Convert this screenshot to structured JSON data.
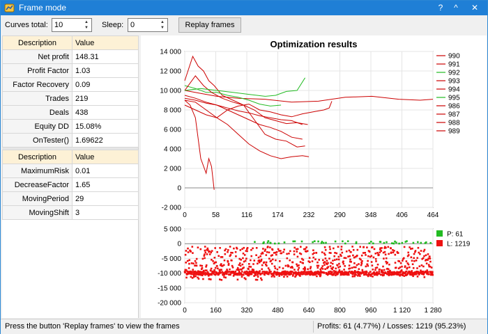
{
  "window": {
    "title": "Frame mode"
  },
  "titlebar_buttons": {
    "help": "?",
    "minimize": "^",
    "close": "✕"
  },
  "toolbar": {
    "curves_label": "Curves total:",
    "curves_value": "10",
    "sleep_label": "Sleep:",
    "sleep_value": "0",
    "replay_label": "Replay frames"
  },
  "results_table": {
    "headers": [
      "Description",
      "Value"
    ],
    "rows": [
      {
        "desc": "Net profit",
        "value": "148.31"
      },
      {
        "desc": "Profit Factor",
        "value": "1.03"
      },
      {
        "desc": "Factor Recovery",
        "value": "0.09"
      },
      {
        "desc": "Trades",
        "value": "219"
      },
      {
        "desc": "Deals",
        "value": "438"
      },
      {
        "desc": "Equity DD",
        "value": "15.08%"
      },
      {
        "desc": "OnTester()",
        "value": "1.69622"
      }
    ]
  },
  "params_table": {
    "headers": [
      "Description",
      "Value"
    ],
    "rows": [
      {
        "desc": "MaximumRisk",
        "value": "0.01"
      },
      {
        "desc": "DecreaseFactor",
        "value": "1.65"
      },
      {
        "desc": "MovingPeriod",
        "value": "29"
      },
      {
        "desc": "MovingShift",
        "value": "3"
      }
    ]
  },
  "chart_data": [
    {
      "type": "line",
      "title": "Optimization results",
      "xlim": [
        0,
        464
      ],
      "ylim": [
        -2000,
        14000
      ],
      "x_ticks": [
        "0",
        "58",
        "116",
        "174",
        "232",
        "290",
        "348",
        "406",
        "464"
      ],
      "y_ticks": [
        "14 000",
        "12 000",
        "10 000",
        "8 000",
        "6 000",
        "4 000",
        "2 000",
        "0",
        "-2 000"
      ],
      "grid": true,
      "legend_position": "right",
      "colors": {
        "red": "#cc0000",
        "green": "#22bb22"
      },
      "series": [
        {
          "name": "990",
          "color": "#cc0000",
          "points": [
            [
              0,
              10000
            ],
            [
              30,
              9700
            ],
            [
              60,
              9400
            ],
            [
              100,
              9200
            ],
            [
              150,
              9100
            ],
            [
              200,
              8800
            ],
            [
              250,
              8900
            ],
            [
              300,
              9300
            ],
            [
              350,
              9400
            ],
            [
              400,
              9100
            ],
            [
              440,
              9000
            ],
            [
              464,
              9100
            ]
          ]
        },
        {
          "name": "991",
          "color": "#cc0000",
          "points": [
            [
              0,
              11000
            ],
            [
              15,
              13500
            ],
            [
              25,
              12500
            ],
            [
              35,
              12000
            ],
            [
              45,
              11000
            ],
            [
              55,
              10500
            ],
            [
              70,
              9500
            ],
            [
              90,
              9000
            ],
            [
              110,
              8500
            ],
            [
              130,
              7000
            ],
            [
              150,
              5500
            ],
            [
              170,
              5000
            ],
            [
              190,
              4800
            ],
            [
              210,
              4200
            ],
            [
              225,
              4300
            ]
          ]
        },
        {
          "name": "992",
          "color": "#22bb22",
          "points": [
            [
              0,
              10500
            ],
            [
              20,
              10200
            ],
            [
              40,
              9800
            ],
            [
              60,
              9800
            ],
            [
              80,
              9500
            ],
            [
              100,
              9300
            ],
            [
              120,
              9000
            ],
            [
              140,
              8600
            ],
            [
              160,
              8400
            ],
            [
              180,
              8500
            ]
          ]
        },
        {
          "name": "993",
          "color": "#cc0000",
          "points": [
            [
              0,
              9000
            ],
            [
              10,
              8500
            ],
            [
              20,
              7200
            ],
            [
              30,
              3000
            ],
            [
              40,
              1500
            ],
            [
              45,
              3000
            ],
            [
              50,
              2200
            ],
            [
              55,
              -200
            ]
          ]
        },
        {
          "name": "994",
          "color": "#cc0000",
          "points": [
            [
              0,
              10000
            ],
            [
              20,
              11500
            ],
            [
              35,
              10500
            ],
            [
              50,
              9800
            ],
            [
              70,
              9200
            ],
            [
              90,
              8800
            ],
            [
              110,
              8500
            ],
            [
              130,
              8000
            ],
            [
              150,
              7200
            ],
            [
              170,
              6900
            ],
            [
              190,
              6600
            ],
            [
              210,
              6700
            ],
            [
              230,
              6500
            ]
          ]
        },
        {
          "name": "995",
          "color": "#22bb22",
          "points": [
            [
              0,
              10000
            ],
            [
              30,
              10200
            ],
            [
              60,
              10000
            ],
            [
              90,
              9800
            ],
            [
              120,
              9600
            ],
            [
              150,
              9400
            ],
            [
              170,
              9500
            ],
            [
              190,
              9900
            ],
            [
              210,
              10000
            ],
            [
              225,
              11300
            ]
          ]
        },
        {
          "name": "986",
          "color": "#cc0000",
          "points": [
            [
              0,
              9000
            ],
            [
              20,
              8800
            ],
            [
              40,
              8000
            ],
            [
              60,
              7200
            ],
            [
              80,
              6500
            ],
            [
              100,
              5500
            ],
            [
              120,
              4500
            ],
            [
              140,
              3800
            ],
            [
              160,
              3300
            ],
            [
              180,
              3000
            ],
            [
              200,
              3200
            ],
            [
              220,
              3300
            ],
            [
              232,
              3200
            ]
          ]
        },
        {
          "name": "987",
          "color": "#cc0000",
          "points": [
            [
              0,
              9500
            ],
            [
              20,
              9200
            ],
            [
              40,
              8800
            ],
            [
              60,
              8500
            ],
            [
              80,
              8000
            ],
            [
              100,
              7500
            ],
            [
              120,
              7000
            ],
            [
              140,
              6500
            ],
            [
              160,
              6200
            ],
            [
              180,
              5800
            ],
            [
              200,
              5200
            ],
            [
              220,
              5000
            ]
          ]
        },
        {
          "name": "988",
          "color": "#cc0000",
          "points": [
            [
              0,
              8500
            ],
            [
              20,
              8000
            ],
            [
              40,
              7500
            ],
            [
              60,
              7200
            ],
            [
              80,
              8000
            ],
            [
              100,
              8400
            ],
            [
              120,
              8600
            ],
            [
              140,
              8000
            ],
            [
              160,
              7800
            ],
            [
              180,
              7500
            ],
            [
              200,
              7300
            ],
            [
              220,
              7600
            ],
            [
              240,
              7800
            ],
            [
              260,
              8000
            ],
            [
              270,
              8200
            ],
            [
              275,
              8900
            ]
          ]
        },
        {
          "name": "989",
          "color": "#cc0000",
          "points": [
            [
              0,
              9200
            ],
            [
              20,
              9000
            ],
            [
              40,
              8700
            ],
            [
              60,
              8500
            ],
            [
              80,
              8200
            ],
            [
              100,
              7900
            ],
            [
              120,
              7700
            ],
            [
              140,
              7400
            ],
            [
              160,
              7200
            ],
            [
              180,
              7000
            ],
            [
              200,
              6900
            ],
            [
              220,
              6500
            ]
          ]
        }
      ]
    },
    {
      "type": "scatter",
      "xlim": [
        0,
        1280
      ],
      "ylim": [
        -20000,
        5000
      ],
      "x_ticks": [
        "0",
        "160",
        "320",
        "480",
        "640",
        "800",
        "960",
        "1 120",
        "1 280"
      ],
      "y_ticks": [
        "5 000",
        "0",
        "-5 000",
        "-10 000",
        "-15 000",
        "-20 000"
      ],
      "grid": true,
      "legend_position": "right",
      "legend": [
        {
          "label": "P: 61",
          "color": "#22bb22"
        },
        {
          "label": "L: 1219",
          "color": "#ee1111"
        }
      ]
    }
  ],
  "status": {
    "left": "Press the button 'Replay frames' to view the frames",
    "right": "Profits: 61 (4.77%) / Losses: 1219 (95.23%)"
  }
}
